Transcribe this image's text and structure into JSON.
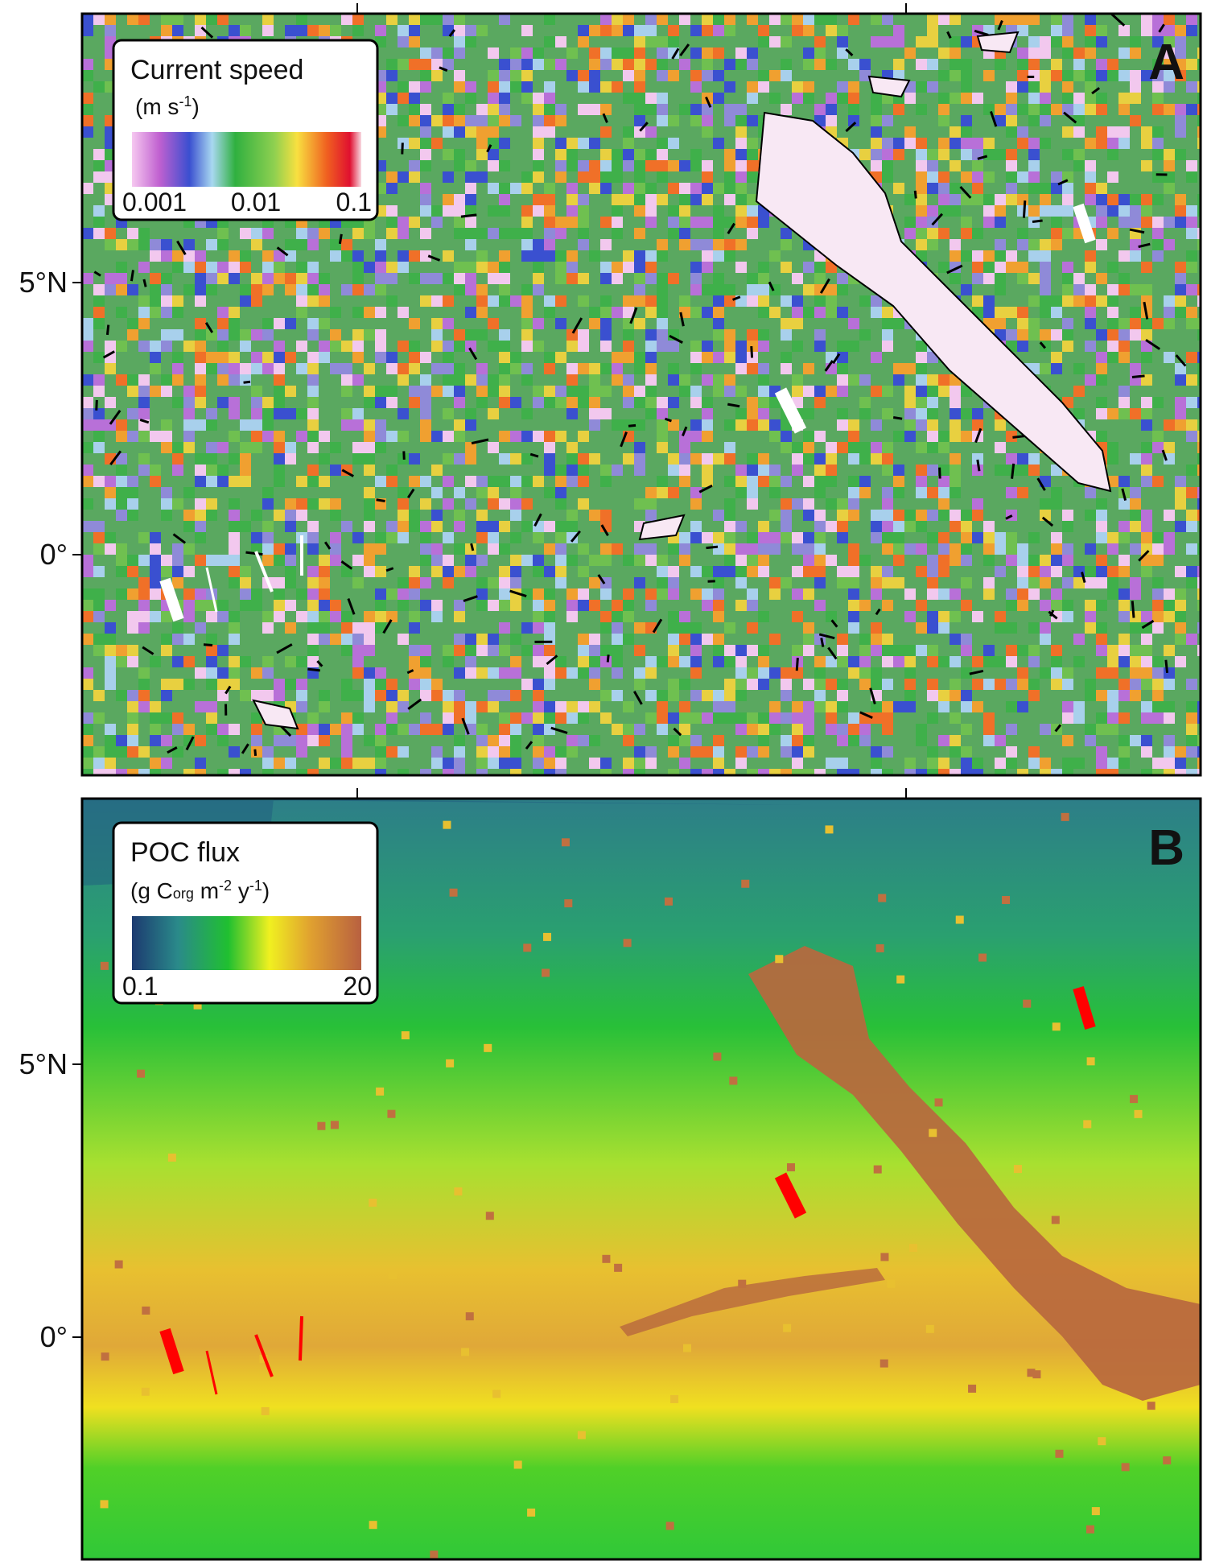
{
  "panels": [
    {
      "letter": "A",
      "legend_title": "Current speed",
      "legend_units": [
        "(m s",
        "-1",
        ")"
      ],
      "scale_labels": [
        "0.001",
        "0.01",
        "0.1"
      ],
      "lat_labels": [
        "5°N",
        "0°"
      ]
    },
    {
      "letter": "B",
      "legend_title": "POC flux",
      "legend_units": [
        "(g C",
        "org",
        " m",
        "-2",
        " y",
        "-1",
        ")"
      ],
      "scale_labels": [
        "0.1",
        "20"
      ],
      "lat_labels": [
        "5°N",
        "0°"
      ]
    }
  ]
}
